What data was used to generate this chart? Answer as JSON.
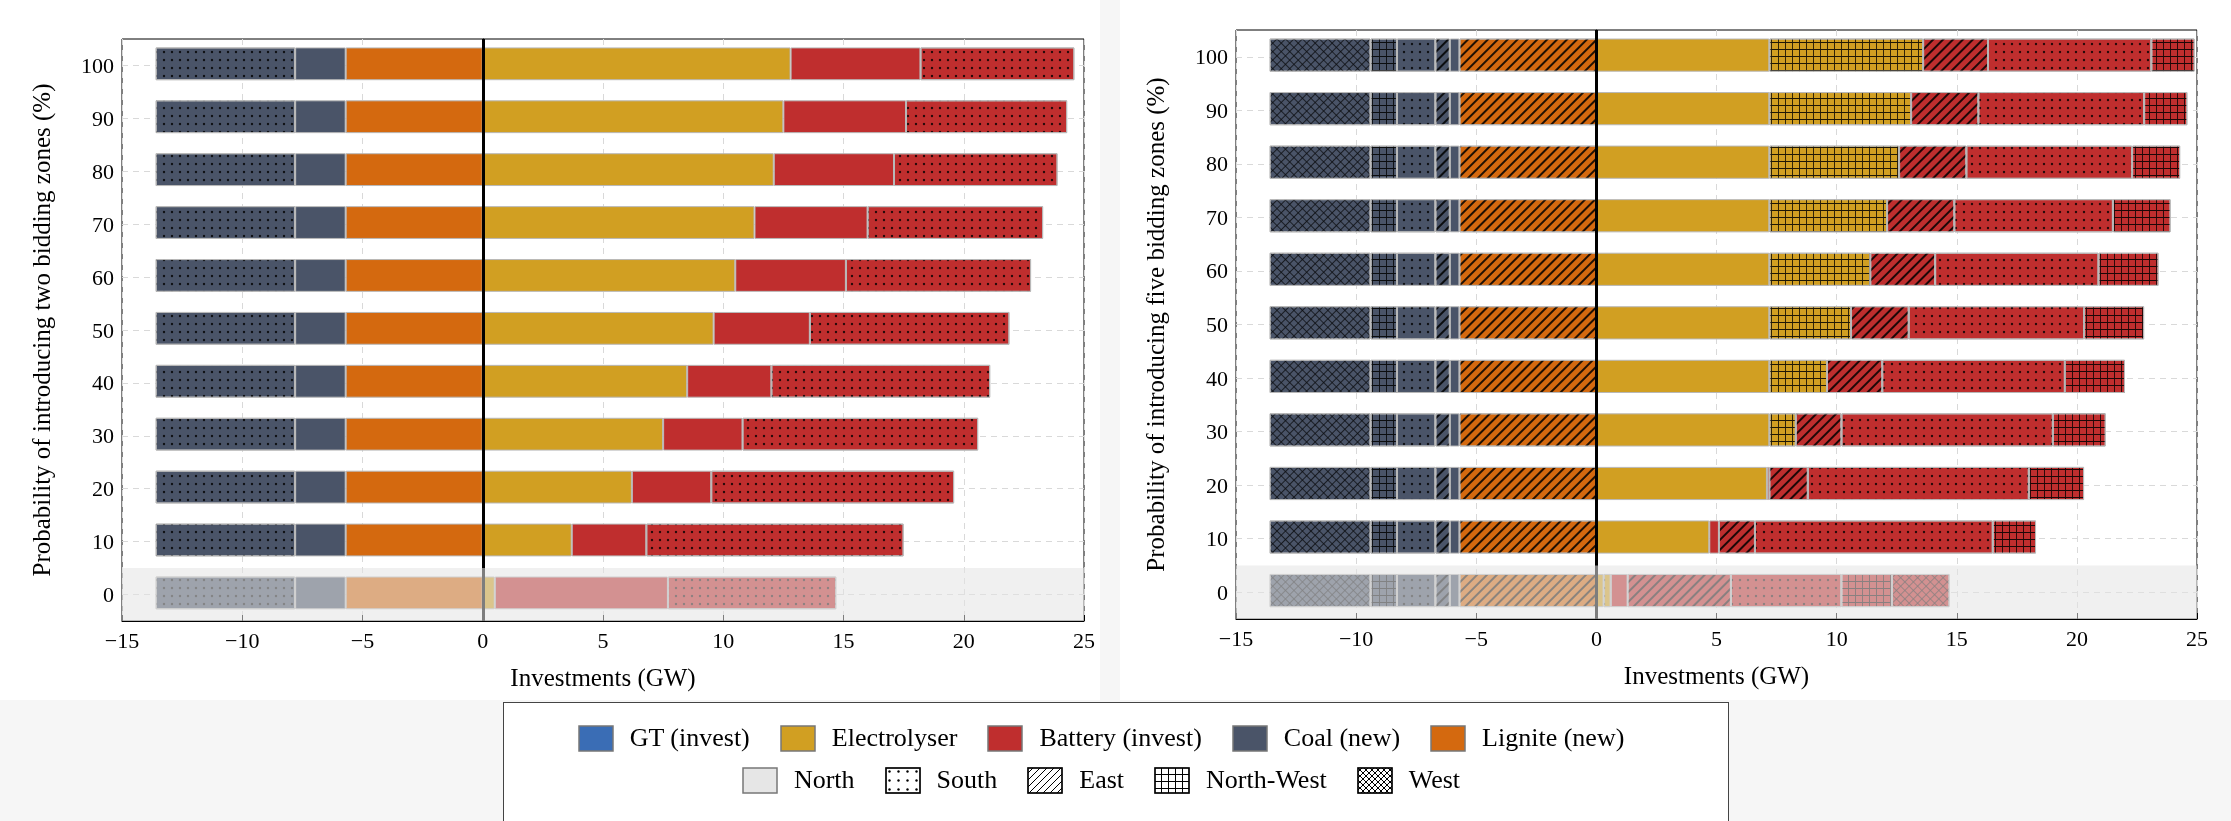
{
  "chart_data": [
    {
      "type": "bar",
      "orientation": "horizontal",
      "stacked": true,
      "xlabel": "Investments (GW)",
      "ylabel": "Probability of introducing two bidding zones (%)",
      "categories": [
        "100",
        "90",
        "80",
        "70",
        "60",
        "50",
        "40",
        "30",
        "20",
        "10",
        "0"
      ],
      "xlim": [
        -15,
        25
      ],
      "xticks": [
        -15,
        -10,
        -5,
        0,
        5,
        10,
        15,
        20,
        25
      ],
      "grid": true,
      "ref_lines": [
        {
          "axis": "x",
          "value": 0,
          "color": "#000000"
        }
      ],
      "bands": [
        {
          "axis": "y",
          "from": "0",
          "to": "0",
          "color": "#e3e3e3"
        }
      ],
      "series": [
        {
          "color": "#d4690f",
          "values": [
            -5.7,
            -5.7,
            -5.7,
            -5.7,
            -5.7,
            -5.7,
            -5.7,
            -5.7,
            -5.7,
            -5.7,
            -5.7
          ]
        },
        {
          "color": "#4a5468",
          "values": [
            -2.1,
            -2.1,
            -2.1,
            -2.1,
            -2.1,
            -2.1,
            -2.1,
            -2.1,
            -2.1,
            -2.1,
            -2.1
          ]
        },
        {
          "color": "#4a5468",
          "values": [
            -5.8,
            -5.8,
            -5.8,
            -5.8,
            -5.8,
            -5.8,
            -5.8,
            -5.8,
            -5.8,
            -5.8,
            -5.8
          ]
        },
        {
          "color": "#d19f22",
          "values": [
            12.8,
            12.5,
            12.1,
            11.3,
            10.5,
            9.6,
            8.5,
            7.5,
            6.2,
            3.7,
            0.5
          ]
        },
        {
          "color": "#bf2e2e",
          "values": [
            5.4,
            5.1,
            5.0,
            4.7,
            4.6,
            4.0,
            3.5,
            3.3,
            3.3,
            3.1,
            7.2
          ]
        },
        {
          "color": "#bf2e2e",
          "values": [
            6.4,
            6.7,
            6.8,
            7.3,
            7.7,
            8.3,
            9.1,
            9.8,
            10.1,
            10.7,
            7.0
          ]
        }
      ]
    },
    {
      "type": "bar",
      "orientation": "horizontal",
      "stacked": true,
      "xlabel": "Investments (GW)",
      "ylabel": "Probability of introducing five bidding zones (%)",
      "categories": [
        "100",
        "90",
        "80",
        "70",
        "60",
        "50",
        "40",
        "30",
        "20",
        "10",
        "0"
      ],
      "xlim": [
        -15,
        25
      ],
      "xticks": [
        -15,
        -10,
        -5,
        0,
        5,
        10,
        15,
        20,
        25
      ],
      "grid": true,
      "ref_lines": [
        {
          "axis": "x",
          "value": 0,
          "color": "#000000"
        }
      ],
      "bands": [
        {
          "axis": "y",
          "from": "0",
          "to": "0",
          "color": "#e3e3e3"
        }
      ],
      "series": [
        {
          "color": "#d4690f",
          "values": [
            -5.7,
            -5.7,
            -5.7,
            -5.7,
            -5.7,
            -5.7,
            -5.7,
            -5.7,
            -5.7,
            -5.7,
            -5.7
          ]
        },
        {
          "color": "#4a5468",
          "values": [
            -0.4,
            -0.4,
            -0.4,
            -0.4,
            -0.4,
            -0.4,
            -0.4,
            -0.4,
            -0.4,
            -0.4,
            -0.4
          ]
        },
        {
          "color": "#4a5468",
          "values": [
            -0.6,
            -0.6,
            -0.6,
            -0.6,
            -0.6,
            -0.6,
            -0.6,
            -0.6,
            -0.6,
            -0.6,
            -0.6
          ]
        },
        {
          "color": "#4a5468",
          "values": [
            -1.6,
            -1.6,
            -1.6,
            -1.6,
            -1.6,
            -1.6,
            -1.6,
            -1.6,
            -1.6,
            -1.6,
            -1.6
          ]
        },
        {
          "color": "#4a5468",
          "values": [
            -1.1,
            -1.1,
            -1.1,
            -1.1,
            -1.1,
            -1.1,
            -1.1,
            -1.1,
            -1.1,
            -1.1,
            -1.1
          ]
        },
        {
          "color": "#4a5468",
          "values": [
            -4.2,
            -4.2,
            -4.2,
            -4.2,
            -4.2,
            -4.2,
            -4.2,
            -4.2,
            -4.2,
            -4.2,
            -4.2
          ]
        },
        {
          "color": "#d19f22",
          "values": [
            7.2,
            7.2,
            7.2,
            7.2,
            7.2,
            7.2,
            7.2,
            7.2,
            7.1,
            4.7,
            0.3
          ]
        },
        {
          "color": "#d19f22",
          "values": [
            null,
            null,
            null,
            null,
            null,
            null,
            null,
            null,
            null,
            null,
            0.3
          ]
        },
        {
          "color": "#d19f22",
          "values": [
            6.4,
            5.9,
            5.4,
            4.9,
            4.2,
            3.4,
            2.4,
            1.1,
            null,
            null,
            null
          ]
        },
        {
          "color": "#bf2e2e",
          "values": [
            null,
            null,
            null,
            null,
            null,
            null,
            null,
            null,
            0.1,
            0.4,
            0.7
          ]
        },
        {
          "color": "#bf2e2e",
          "values": [
            2.7,
            2.8,
            2.8,
            2.8,
            2.7,
            2.4,
            2.3,
            1.9,
            1.6,
            1.5,
            4.3
          ]
        },
        {
          "color": "#bf2e2e",
          "values": [
            6.8,
            6.9,
            6.9,
            6.6,
            6.8,
            7.3,
            7.6,
            8.8,
            9.2,
            9.9,
            4.6
          ]
        },
        {
          "color": "#bf2e2e",
          "values": [
            1.8,
            1.8,
            2.0,
            2.4,
            2.5,
            2.5,
            2.5,
            2.2,
            2.3,
            1.8,
            2.1
          ]
        },
        {
          "color": "#bf2e2e",
          "values": [
            null,
            null,
            null,
            null,
            null,
            null,
            null,
            null,
            null,
            null,
            2.4
          ]
        }
      ]
    },
    {
      "type": "other",
      "categories": [
        "GT (invest)",
        "Electrolyser",
        "Battery (invest)",
        "Coal (new)",
        "Lignite (new)",
        "North",
        "South",
        "East",
        "North-West",
        "West"
      ],
      "colors": [
        "#3a6db5",
        "#d19f22",
        "#bf2e2e",
        "#4a5468",
        "#d4690f",
        "#e6e6e6",
        "#ffffff",
        "#ffffff",
        "#ffffff",
        "#ffffff"
      ]
    }
  ]
}
